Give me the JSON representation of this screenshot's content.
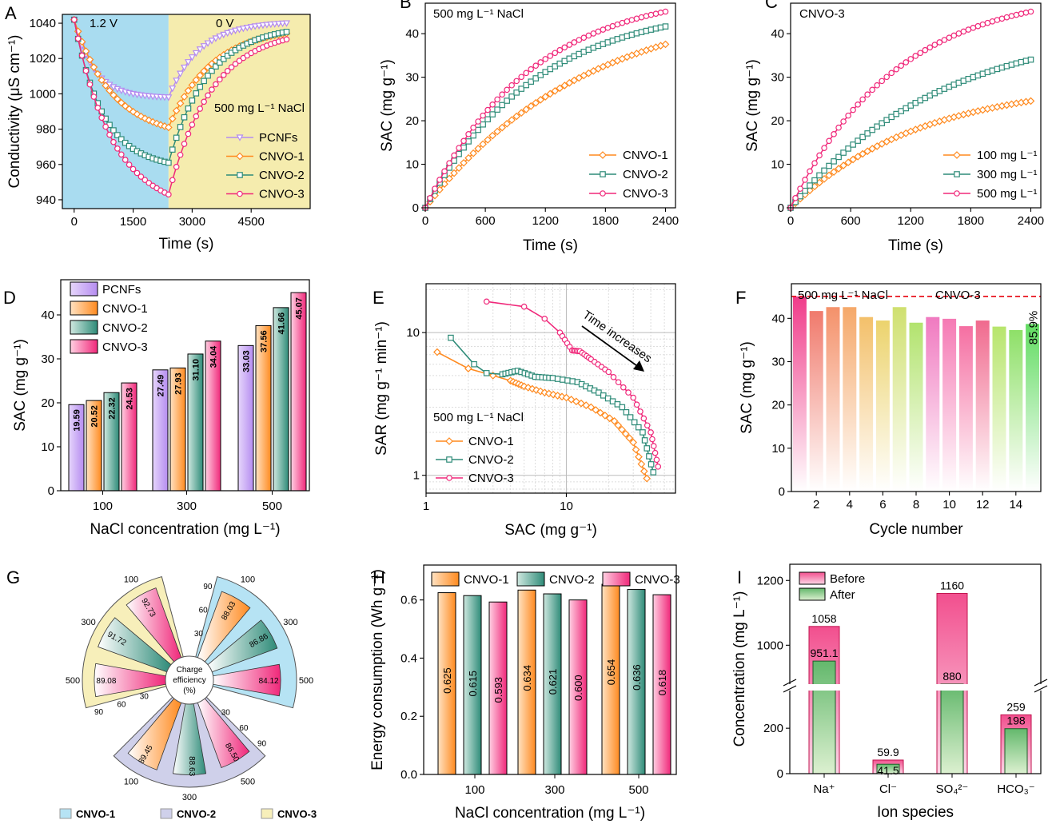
{
  "colors": {
    "purple": "#b58cf0",
    "orange": "#ff8a1f",
    "green": "#2e8b78",
    "pink": "#f0287a",
    "blue_bg": "#a9dcf0",
    "yellow_bg": "#f5ecae",
    "red": "#e8141e"
  },
  "chart_data": [
    {
      "id": "A",
      "type": "line",
      "panel_label": "A",
      "xlabel": "Time (s)",
      "ylabel": "Conductivity (μS cm⁻¹)",
      "xlim": [
        -300,
        6000
      ],
      "ylim": [
        935,
        1045
      ],
      "xticks": [
        0,
        1500,
        3000,
        4500
      ],
      "yticks": [
        940,
        960,
        980,
        1000,
        1020,
        1040
      ],
      "annotations": {
        "charge": "1.2 V",
        "discharge": "0 V",
        "condition": "500 mg L⁻¹ NaCl"
      },
      "switch_time": 2400,
      "end_time": 5400,
      "series": [
        {
          "name": "PCNFs",
          "start": 1042,
          "min": 998,
          "end": 1041,
          "k1": 500,
          "k2": 800
        },
        {
          "name": "CNVO-1",
          "start": 1042,
          "min": 981,
          "end": 1038,
          "k1": 900,
          "k2": 1100
        },
        {
          "name": "CNVO-2",
          "start": 1042,
          "min": 961,
          "end": 1039,
          "k1": 700,
          "k2": 1000
        },
        {
          "name": "CNVO-3",
          "start": 1042,
          "min": 943,
          "end": 1037,
          "k1": 900,
          "k2": 1100
        }
      ]
    },
    {
      "id": "B",
      "type": "line",
      "panel_label": "B",
      "title": "500 mg L⁻¹ NaCl",
      "xlabel": "Time (s)",
      "ylabel": "SAC (mg g⁻¹)",
      "xlim": [
        0,
        2500
      ],
      "ylim": [
        0,
        47
      ],
      "xticks": [
        0,
        600,
        1200,
        1800,
        2400
      ],
      "yticks": [
        0,
        10,
        20,
        30,
        40
      ],
      "series": [
        {
          "name": "CNVO-1",
          "final": 37.56,
          "tau": 1600
        },
        {
          "name": "CNVO-2",
          "final": 41.66,
          "tau": 1100
        },
        {
          "name": "CNVO-3",
          "final": 45.07,
          "tau": 1050
        }
      ]
    },
    {
      "id": "C",
      "type": "line",
      "panel_label": "C",
      "title": "CNVO-3",
      "xlabel": "Time (s)",
      "ylabel": "SAC (mg g⁻¹)",
      "xlim": [
        0,
        2500
      ],
      "ylim": [
        0,
        47
      ],
      "xticks": [
        0,
        600,
        1200,
        1800,
        2400
      ],
      "yticks": [
        0,
        10,
        20,
        30,
        40
      ],
      "series": [
        {
          "name": "100 mg L⁻¹",
          "final": 24.53,
          "tau": 1300
        },
        {
          "name": "300 mg L⁻¹",
          "final": 34.04,
          "tau": 1500
        },
        {
          "name": "500 mg L⁻¹",
          "final": 45.07,
          "tau": 1050
        }
      ]
    },
    {
      "id": "D",
      "type": "bar",
      "panel_label": "D",
      "xlabel": "NaCl concentration (mg L⁻¹)",
      "ylabel": "SAC (mg g⁻¹)",
      "ylim": [
        0,
        48
      ],
      "yticks": [
        0,
        10,
        20,
        30,
        40
      ],
      "categories": [
        "100",
        "300",
        "500"
      ],
      "series": [
        {
          "name": "PCNFs",
          "values": [
            19.59,
            27.49,
            33.03
          ],
          "labels": [
            "19.59",
            "27.49",
            "33.03"
          ]
        },
        {
          "name": "CNVO-1",
          "values": [
            20.52,
            27.93,
            37.56
          ],
          "labels": [
            "20.52",
            "27.93",
            "37.56"
          ]
        },
        {
          "name": "CNVO-2",
          "values": [
            22.32,
            31.1,
            41.66
          ],
          "labels": [
            "22.32",
            "31.10",
            "41.66"
          ]
        },
        {
          "name": "CNVO-3",
          "values": [
            24.53,
            34.04,
            45.07
          ],
          "labels": [
            "24.53",
            "34.04",
            "45.07"
          ]
        }
      ]
    },
    {
      "id": "E",
      "type": "scatter",
      "panel_label": "E",
      "xlabel": "SAC (mg g⁻¹)",
      "ylabel": "SAR (mg g⁻¹ min⁻¹)",
      "xscale": "log",
      "yscale": "log",
      "xlim": [
        1,
        60
      ],
      "ylim": [
        0.75,
        22
      ],
      "xticks": [
        1,
        10
      ],
      "yticks": [
        1,
        10
      ],
      "condition": "500 mg L⁻¹ NaCl",
      "arrow_label": "Time increases",
      "series": [
        {
          "name": "CNVO-1",
          "points": [
            [
              1.2,
              7.3
            ],
            [
              2.0,
              5.6
            ],
            [
              3.0,
              5.0
            ],
            [
              4.0,
              4.6
            ],
            [
              5.0,
              4.2
            ],
            [
              7,
              3.8
            ],
            [
              10,
              3.5
            ],
            [
              15,
              3.0
            ],
            [
              22,
              2.4
            ],
            [
              30,
              1.7
            ],
            [
              37.5,
              0.95
            ]
          ]
        },
        {
          "name": "CNVO-2",
          "points": [
            [
              1.5,
              9.2
            ],
            [
              2.2,
              6.0
            ],
            [
              2.7,
              5.2
            ],
            [
              3.5,
              5.1
            ],
            [
              4.5,
              5.4
            ],
            [
              6,
              4.9
            ],
            [
              8,
              4.8
            ],
            [
              12,
              4.5
            ],
            [
              17,
              3.8
            ],
            [
              25,
              3.0
            ],
            [
              35,
              2.0
            ],
            [
              41.7,
              1.05
            ]
          ]
        },
        {
          "name": "CNVO-3",
          "points": [
            [
              2.7,
              16.5
            ],
            [
              5,
              15.2
            ],
            [
              7,
              12.5
            ],
            [
              9,
              10
            ],
            [
              11,
              7.5
            ],
            [
              12.5,
              7.4
            ],
            [
              15,
              6.5
            ],
            [
              20,
              5.3
            ],
            [
              30,
              3.5
            ],
            [
              40,
              2.0
            ],
            [
              45.1,
              1.15
            ]
          ]
        }
      ]
    },
    {
      "id": "F",
      "type": "bar",
      "panel_label": "F",
      "xlabel": "Cycle number",
      "ylabel": "SAC (mg g⁻¹)",
      "ylim": [
        0,
        48
      ],
      "yticks": [
        0,
        10,
        20,
        30,
        40
      ],
      "xticks": [
        2,
        4,
        6,
        8,
        10,
        12,
        14
      ],
      "reference": 45.07,
      "condition": "500 mg L⁻¹ NaCl",
      "material": "CNVO-3",
      "retention": "85.9%",
      "values": [
        45.07,
        41.7,
        42.6,
        42.6,
        40.3,
        39.5,
        42.6,
        39.0,
        40.3,
        39.9,
        38.2,
        39.5,
        38.1,
        37.3,
        38.7
      ],
      "bar_colors": [
        "#f03c8a",
        "#f07a6c",
        "#f4916a",
        "#f5a869",
        "#f3c06a",
        "#ecd36d",
        "#cfe06f",
        "#b2e36e",
        "#f07ac0",
        "#f57ab4",
        "#f56fa2",
        "#f06a8e",
        "#b7e56c",
        "#8ee068",
        "#62dc62"
      ]
    },
    {
      "id": "G",
      "type": "polar-bar",
      "panel_label": "G",
      "center_label": [
        "Charge",
        "efficiency",
        "(%)"
      ],
      "materials": [
        {
          "name": "CNVO-1",
          "legend": "CNVO-1",
          "values": [
            88.03,
            86.86,
            84.12
          ]
        },
        {
          "name": "CNVO-2",
          "legend": "CNVO-2",
          "values": [
            89.45,
            88.63,
            86.5
          ]
        },
        {
          "name": "CNVO-3",
          "legend": "CNVO-3",
          "values": [
            92.73,
            91.72,
            89.08
          ]
        }
      ],
      "value_labels": {
        "CNVO-1": [
          "88.03",
          "86.86",
          "84.12"
        ],
        "CNVO-2": [
          "89.45",
          "88.63",
          "86.50"
        ],
        "CNVO-3": [
          "92.73",
          "91.72",
          "89.08"
        ]
      },
      "concentrations": [
        "100",
        "300",
        "500"
      ],
      "ticks": [
        "30",
        "60",
        "90"
      ]
    },
    {
      "id": "H",
      "type": "bar",
      "panel_label": "H",
      "xlabel": "NaCl concentration (mg L⁻¹)",
      "ylabel": "Energy consumption (Wh g⁻¹)",
      "ylim": [
        0,
        0.72
      ],
      "yticks": [
        0.0,
        0.2,
        0.4,
        0.6
      ],
      "ytick_labels": [
        "0.0",
        "0.2",
        "0.4",
        "0.6"
      ],
      "categories": [
        "100",
        "300",
        "500"
      ],
      "series": [
        {
          "name": "CNVO-1",
          "values": [
            0.625,
            0.634,
            0.654
          ],
          "labels": [
            "0.625",
            "0.634",
            "0.654"
          ]
        },
        {
          "name": "CNVO-2",
          "values": [
            0.615,
            0.621,
            0.636
          ],
          "labels": [
            "0.615",
            "0.621",
            "0.636"
          ]
        },
        {
          "name": "CNVO-3",
          "values": [
            0.593,
            0.6,
            0.618
          ],
          "labels": [
            "0.593",
            "0.600",
            "0.618"
          ]
        }
      ]
    },
    {
      "id": "I",
      "type": "bar",
      "panel_label": "I",
      "xlabel": "Ion species",
      "ylabel": "Concentration (mg L⁻¹)",
      "axis_break": true,
      "lower_range": [
        0,
        380
      ],
      "upper_range": [
        870,
        1250
      ],
      "yticks": [
        0,
        200,
        1000,
        1200
      ],
      "categories": [
        "Na⁺",
        "Cl⁻",
        "SO₄²⁻",
        "HCO₃⁻"
      ],
      "series": [
        {
          "name": "Before",
          "values": [
            1058,
            59.9,
            1160,
            259
          ],
          "labels": [
            "1058",
            "59.9",
            "1160",
            "259"
          ]
        },
        {
          "name": "After",
          "values": [
            951.1,
            41.5,
            880,
            198
          ],
          "labels": [
            "951.1",
            "41.5",
            "880",
            "198"
          ]
        }
      ]
    }
  ]
}
